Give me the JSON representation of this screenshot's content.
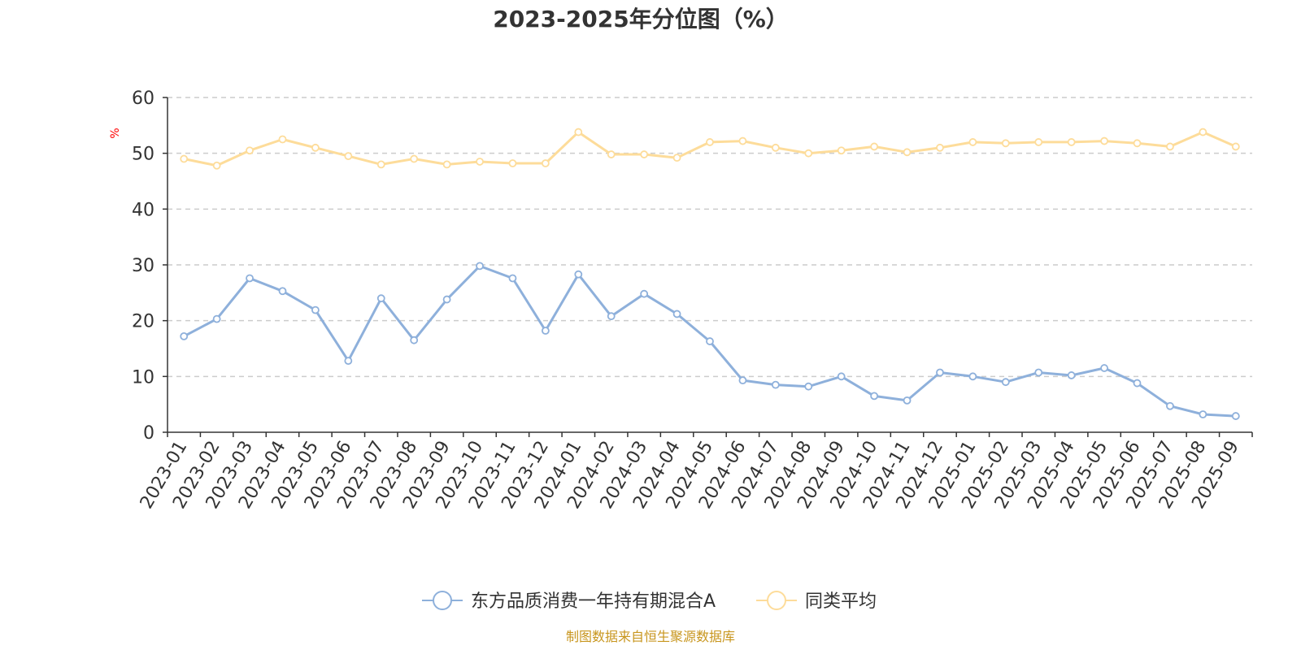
{
  "chart_data": {
    "type": "line",
    "title": "2023-2025年分位图（%）",
    "ylabel": "%",
    "ylim": [
      0,
      60
    ],
    "yticks": [
      0,
      10,
      20,
      30,
      40,
      50,
      60
    ],
    "grid": "horizontal dashed",
    "legend_position": "bottom-center",
    "categories": [
      "2023-01",
      "2023-02",
      "2023-03",
      "2023-04",
      "2023-05",
      "2023-06",
      "2023-07",
      "2023-08",
      "2023-09",
      "2023-10",
      "2023-11",
      "2023-12",
      "2024-01",
      "2024-02",
      "2024-03",
      "2024-04",
      "2024-05",
      "2024-06",
      "2024-07",
      "2024-08",
      "2024-09",
      "2024-10",
      "2024-11",
      "2024-12",
      "2025-01",
      "2025-02",
      "2025-03",
      "2025-04",
      "2025-05",
      "2025-06",
      "2025-07",
      "2025-08",
      "2025-09"
    ],
    "series": [
      {
        "name": "东方品质消费一年持有期混合A",
        "color": "#8eb0db",
        "values": [
          17.2,
          20.3,
          27.6,
          25.3,
          21.9,
          12.8,
          24.0,
          16.5,
          23.8,
          29.8,
          27.6,
          18.2,
          28.3,
          20.8,
          24.8,
          21.2,
          16.3,
          9.3,
          8.5,
          8.2,
          10.0,
          6.5,
          5.7,
          10.7,
          10.0,
          9.0,
          10.7,
          10.2,
          11.5,
          8.8,
          4.7,
          3.2,
          2.9
        ]
      },
      {
        "name": "同类平均",
        "color": "#fddc9a",
        "values": [
          49.0,
          47.8,
          50.5,
          52.5,
          51.0,
          49.5,
          48.0,
          49.0,
          48.0,
          48.5,
          48.2,
          48.2,
          53.8,
          49.8,
          49.8,
          49.2,
          52.0,
          52.2,
          51.0,
          50.0,
          50.5,
          51.2,
          50.2,
          51.0,
          52.0,
          51.8,
          52.0,
          52.0,
          52.2,
          51.8,
          51.2,
          53.8,
          51.2
        ]
      }
    ]
  },
  "source_note": "制图数据来自恒生聚源数据库"
}
